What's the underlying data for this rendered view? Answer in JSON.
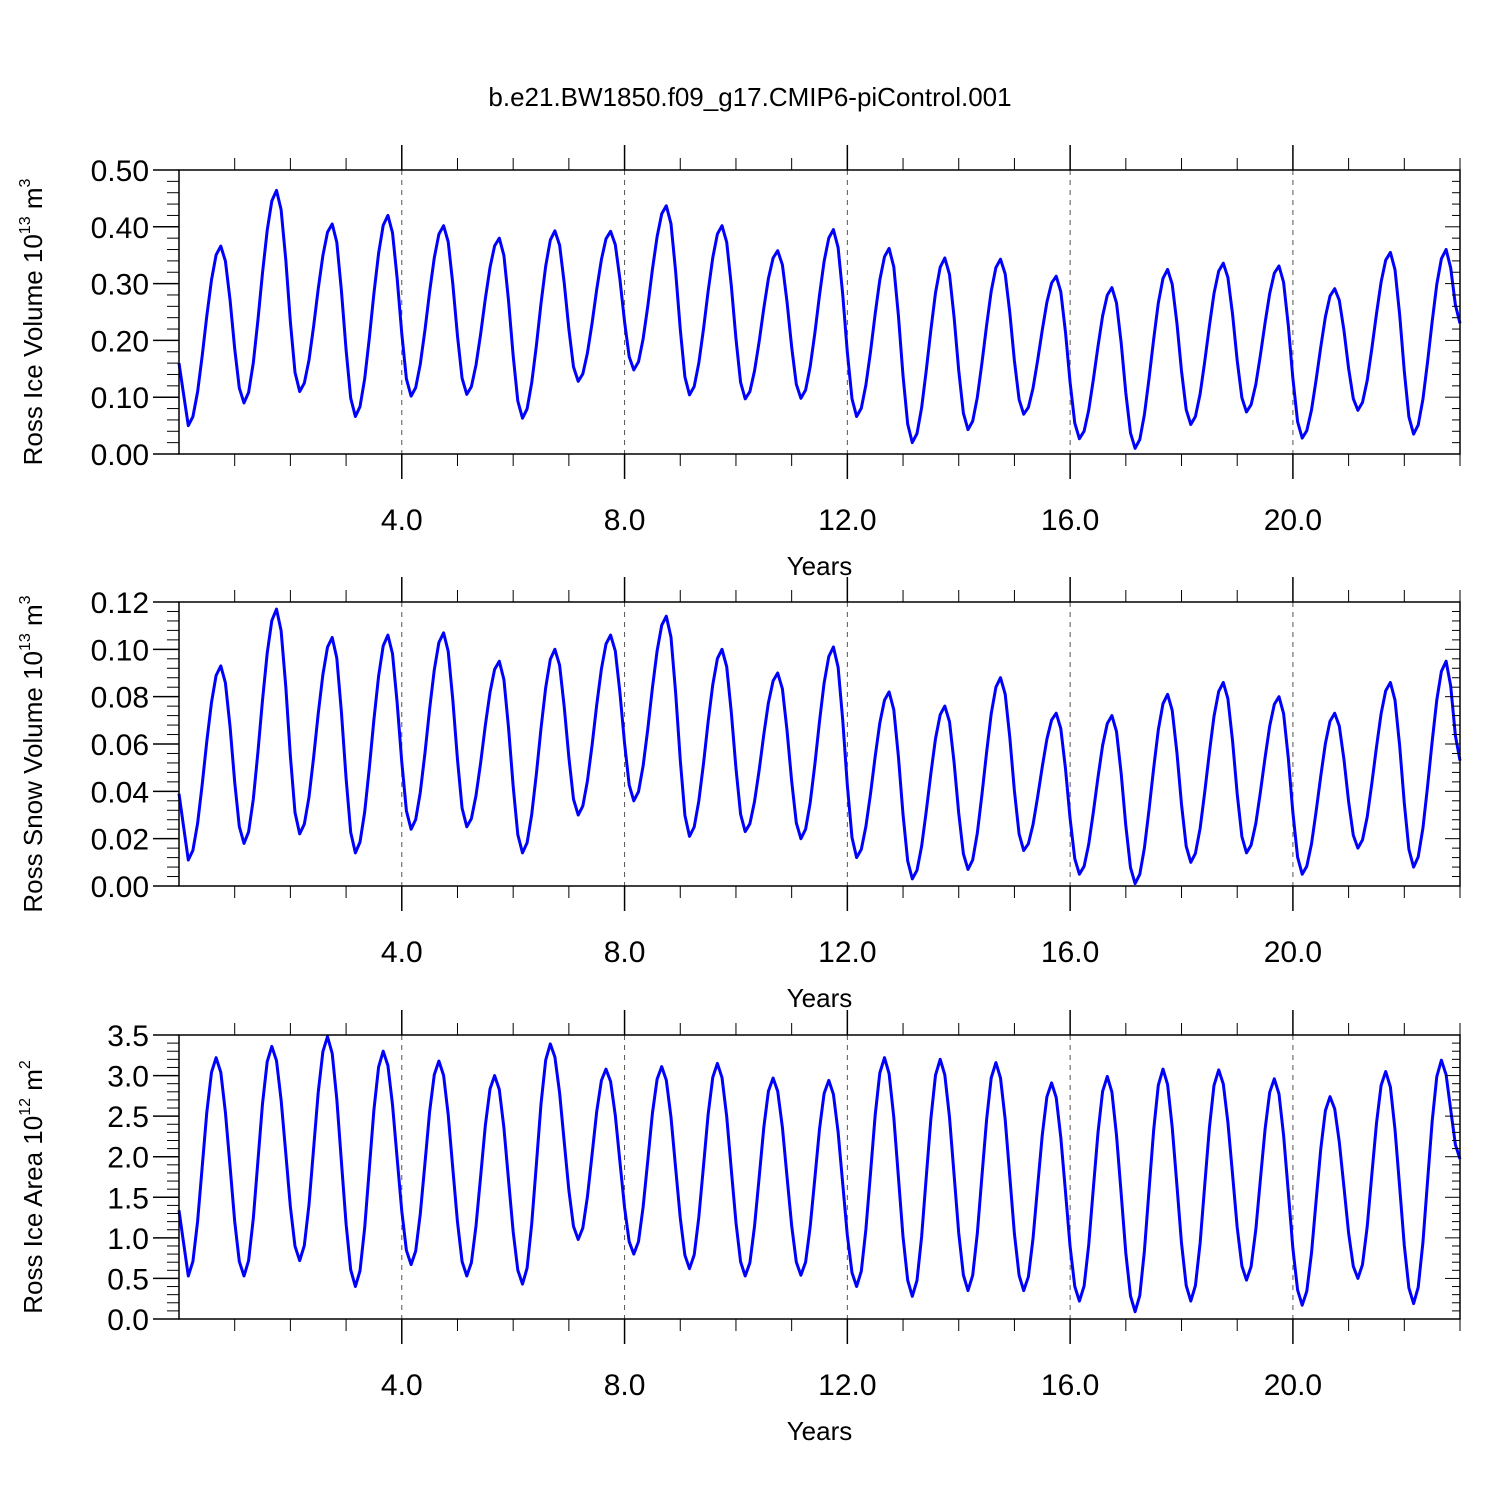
{
  "title": "b.e21.BW1850.f09_g17.CMIP6-piControl.001",
  "series_color": "#0000ff",
  "chart_data": [
    {
      "type": "line",
      "ylabel_parts": [
        "Ross Ice Volume 10",
        "13",
        " m",
        "3"
      ],
      "xlabel": "Years",
      "xlim": [
        0.0,
        23.0
      ],
      "ylim": [
        0.0,
        0.5
      ],
      "yticks": [
        "0.00",
        "0.10",
        "0.20",
        "0.30",
        "0.40",
        "0.50"
      ],
      "ytick_values": [
        0.0,
        0.1,
        0.2,
        0.3,
        0.4,
        0.5
      ],
      "xticks": [
        "4.0",
        "8.0",
        "12.0",
        "16.0",
        "20.0"
      ],
      "xtick_values": [
        4,
        8,
        12,
        16,
        20
      ],
      "grid": "dashed vertical at major x ticks",
      "cycle": {
        "min_month": 2,
        "max_month": 9,
        "minima": [
          0.05,
          0.09,
          0.11,
          0.066,
          0.102,
          0.105,
          0.063,
          0.128,
          0.148,
          0.104,
          0.097,
          0.098,
          0.066,
          0.02,
          0.043,
          0.07,
          0.027,
          0.01,
          0.052,
          0.074,
          0.028,
          0.077,
          0.035,
          0.035
        ],
        "maxima": [
          0.366,
          0.464,
          0.405,
          0.42,
          0.402,
          0.38,
          0.393,
          0.392,
          0.437,
          0.402,
          0.358,
          0.395,
          0.362,
          0.345,
          0.343,
          0.313,
          0.293,
          0.325,
          0.336,
          0.331,
          0.291,
          0.355,
          0.36
        ],
        "start_value": 0.16,
        "end_value": 0.23
      }
    },
    {
      "type": "line",
      "ylabel_parts": [
        "Ross Snow Volume 10",
        "13",
        " m",
        "3"
      ],
      "xlabel": "Years",
      "xlim": [
        0.0,
        23.0
      ],
      "ylim": [
        0.0,
        0.12
      ],
      "yticks": [
        "0.00",
        "0.02",
        "0.04",
        "0.06",
        "0.08",
        "0.10",
        "0.12"
      ],
      "ytick_values": [
        0.0,
        0.02,
        0.04,
        0.06,
        0.08,
        0.1,
        0.12
      ],
      "xticks": [
        "4.0",
        "8.0",
        "12.0",
        "16.0",
        "20.0"
      ],
      "xtick_values": [
        4,
        8,
        12,
        16,
        20
      ],
      "grid": "dashed vertical at major x ticks",
      "cycle": {
        "min_month": 2,
        "max_month": 9,
        "minima": [
          0.011,
          0.018,
          0.022,
          0.014,
          0.024,
          0.025,
          0.014,
          0.03,
          0.036,
          0.021,
          0.023,
          0.02,
          0.012,
          0.003,
          0.007,
          0.015,
          0.005,
          0.001,
          0.01,
          0.014,
          0.005,
          0.016,
          0.008,
          0.008
        ],
        "maxima": [
          0.093,
          0.117,
          0.105,
          0.106,
          0.107,
          0.095,
          0.1,
          0.106,
          0.114,
          0.1,
          0.09,
          0.101,
          0.082,
          0.076,
          0.088,
          0.073,
          0.072,
          0.081,
          0.086,
          0.08,
          0.073,
          0.086,
          0.095
        ],
        "start_value": 0.039,
        "end_value": 0.053
      }
    },
    {
      "type": "line",
      "ylabel_parts": [
        "Ross Ice Area 10",
        "12",
        " m",
        "2"
      ],
      "xlabel": "Years",
      "xlim": [
        0.0,
        23.0
      ],
      "ylim": [
        0.0,
        3.5
      ],
      "yticks": [
        "0.0",
        "0.5",
        "1.0",
        "1.5",
        "2.0",
        "2.5",
        "3.0",
        "3.5"
      ],
      "ytick_values": [
        0.0,
        0.5,
        1.0,
        1.5,
        2.0,
        2.5,
        3.0,
        3.5
      ],
      "xticks": [
        "4.0",
        "8.0",
        "12.0",
        "16.0",
        "20.0"
      ],
      "xtick_values": [
        4,
        8,
        12,
        16,
        20
      ],
      "grid": "dashed vertical at major x ticks",
      "cycle": {
        "min_month": 2,
        "max_month": 8,
        "minima": [
          0.53,
          0.53,
          0.72,
          0.4,
          0.67,
          0.53,
          0.43,
          0.98,
          0.8,
          0.62,
          0.53,
          0.54,
          0.4,
          0.28,
          0.35,
          0.35,
          0.22,
          0.09,
          0.22,
          0.48,
          0.17,
          0.5,
          0.19,
          0.19
        ],
        "maxima": [
          3.22,
          3.36,
          3.48,
          3.3,
          3.18,
          3.0,
          3.39,
          3.08,
          3.11,
          3.15,
          2.97,
          2.94,
          3.22,
          3.2,
          3.16,
          2.91,
          2.99,
          3.08,
          3.07,
          2.96,
          2.74,
          3.05,
          3.19
        ],
        "start_value": 1.34,
        "end_value": 1.97
      }
    }
  ]
}
